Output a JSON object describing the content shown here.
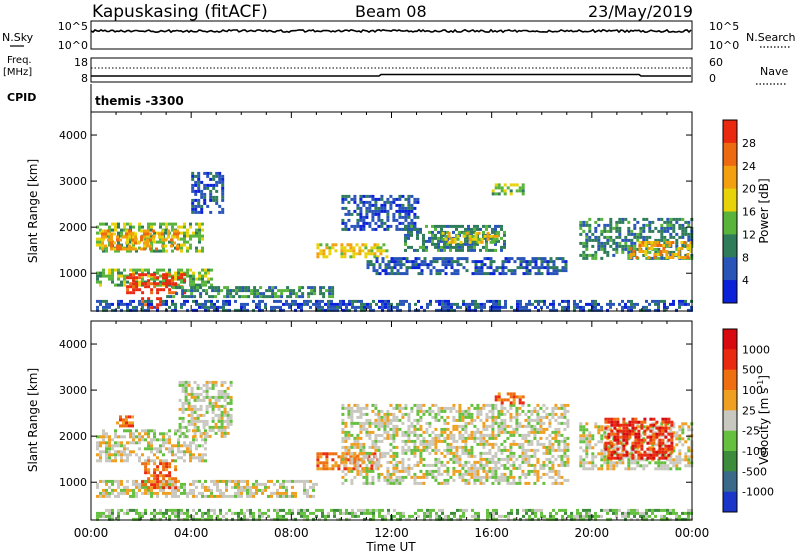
{
  "header": {
    "station": "Kapuskasing (fitACF)",
    "beam": "Beam 08",
    "date": "23/May/2019"
  },
  "top_panels": {
    "nsky_label": "N.Sky",
    "nsky_ticks": [
      "10^5",
      "10^0"
    ],
    "nsearch_label": "N.Search",
    "nsearch_ticks": [
      "10^5",
      "10^0"
    ],
    "freq_label_1": "Freq.",
    "freq_label_2": "[MHz]",
    "freq_ticks": [
      "18",
      "8"
    ],
    "nave_label": "Nave",
    "nave_ticks": [
      "60",
      "0"
    ],
    "cpid_label": "CPID",
    "cpid_value": "themis -3300"
  },
  "x_axis": {
    "title": "Time UT",
    "ticks": [
      "00:00",
      "04:00",
      "08:00",
      "12:00",
      "16:00",
      "20:00",
      "00:00"
    ]
  },
  "chart_data": [
    {
      "type": "heatmap",
      "name": "power",
      "xlabel": "Time UT",
      "ylabel": "Slant Range [km]",
      "xlim": [
        0,
        24
      ],
      "ylim": [
        180,
        4500
      ],
      "yticks": [
        "1000",
        "2000",
        "3000",
        "4000"
      ],
      "colorbar": {
        "label": "Power [dB]",
        "ticks": [
          "4",
          "8",
          "12",
          "16",
          "20",
          "24",
          "28"
        ],
        "colors": [
          "#0a22d8",
          "#2a55b8",
          "#2e7c5a",
          "#58b43a",
          "#e8d20a",
          "#f3a010",
          "#ee6a10",
          "#ea2a10"
        ]
      },
      "regions": [
        {
          "t0": 0.2,
          "t1": 4.4,
          "r0": 1480,
          "r1": 2100,
          "level": 3
        },
        {
          "t0": 0.4,
          "t1": 3.4,
          "r0": 1550,
          "r1": 1950,
          "level": 5
        },
        {
          "t0": 0.2,
          "t1": 4.8,
          "r0": 750,
          "r1": 1100,
          "level": 3
        },
        {
          "t0": 1.4,
          "t1": 3.7,
          "r0": 600,
          "r1": 1000,
          "level": 7
        },
        {
          "t0": 2.0,
          "t1": 2.8,
          "r0": 260,
          "r1": 480,
          "level": 7
        },
        {
          "t0": 3.0,
          "t1": 9.6,
          "r0": 460,
          "r1": 720,
          "level": 2
        },
        {
          "t0": 0.2,
          "t1": 24.0,
          "r0": 180,
          "r1": 420,
          "level": 1
        },
        {
          "t0": 4.0,
          "t1": 5.2,
          "r0": 2300,
          "r1": 3200,
          "level": 1
        },
        {
          "t0": 9.0,
          "t1": 11.8,
          "r0": 1350,
          "r1": 1650,
          "level": 4
        },
        {
          "t0": 10.0,
          "t1": 13.0,
          "r0": 1950,
          "r1": 2700,
          "level": 1
        },
        {
          "t0": 12.5,
          "t1": 16.5,
          "r0": 1500,
          "r1": 2050,
          "level": 2
        },
        {
          "t0": 14.0,
          "t1": 16.2,
          "r0": 1650,
          "r1": 1900,
          "level": 4
        },
        {
          "t0": 11.0,
          "t1": 19.0,
          "r0": 1000,
          "r1": 1350,
          "level": 1
        },
        {
          "t0": 16.0,
          "t1": 17.2,
          "r0": 2750,
          "r1": 2950,
          "level": 3
        },
        {
          "t0": 19.5,
          "t1": 24.0,
          "r0": 1300,
          "r1": 2200,
          "level": 2
        },
        {
          "t0": 21.5,
          "t1": 24.0,
          "r0": 1350,
          "r1": 1700,
          "level": 5
        }
      ]
    },
    {
      "type": "heatmap",
      "name": "velocity",
      "xlabel": "Time UT",
      "ylabel": "Slant Range [km]",
      "xlim": [
        0,
        24
      ],
      "ylim": [
        180,
        4500
      ],
      "yticks": [
        "1000",
        "2000",
        "3000",
        "4000"
      ],
      "colorbar": {
        "label": "Velocity [m s^-1]",
        "ticks": [
          "1000",
          "500",
          "100",
          "25",
          "-25",
          "-100",
          "-500",
          "-1000"
        ],
        "colors": [
          "#1a36c8",
          "#3a6a8a",
          "#3c8c3c",
          "#66c040",
          "#c8c8c0",
          "#f0a020",
          "#ee6e10",
          "#ea2a10",
          "#d80a10"
        ]
      },
      "regions": [
        {
          "t0": 0.2,
          "t1": 4.6,
          "r0": 1450,
          "r1": 2150,
          "level": 4
        },
        {
          "t0": 0.2,
          "t1": 9.0,
          "r0": 700,
          "r1": 1050,
          "level": 4
        },
        {
          "t0": 2.0,
          "t1": 3.4,
          "r0": 900,
          "r1": 1500,
          "level": 6
        },
        {
          "t0": 1.0,
          "t1": 1.6,
          "r0": 2250,
          "r1": 2450,
          "level": 6
        },
        {
          "t0": 3.5,
          "t1": 5.6,
          "r0": 2000,
          "r1": 3200,
          "level": 4
        },
        {
          "t0": 0.2,
          "t1": 24.0,
          "r0": 180,
          "r1": 420,
          "level": 3
        },
        {
          "t0": 9.0,
          "t1": 11.6,
          "r0": 1300,
          "r1": 1650,
          "level": 6
        },
        {
          "t0": 10.0,
          "t1": 19.0,
          "r0": 1000,
          "r1": 2700,
          "level": 4
        },
        {
          "t0": 16.0,
          "t1": 17.2,
          "r0": 2750,
          "r1": 2950,
          "level": 6
        },
        {
          "t0": 19.5,
          "t1": 24.0,
          "r0": 1300,
          "r1": 2300,
          "level": 4
        },
        {
          "t0": 20.5,
          "t1": 23.2,
          "r0": 1500,
          "r1": 2400,
          "level": 7
        },
        {
          "t0": 10.0,
          "t1": 11.0,
          "r0": 1450,
          "r1": 1600,
          "level": 5
        }
      ]
    }
  ]
}
